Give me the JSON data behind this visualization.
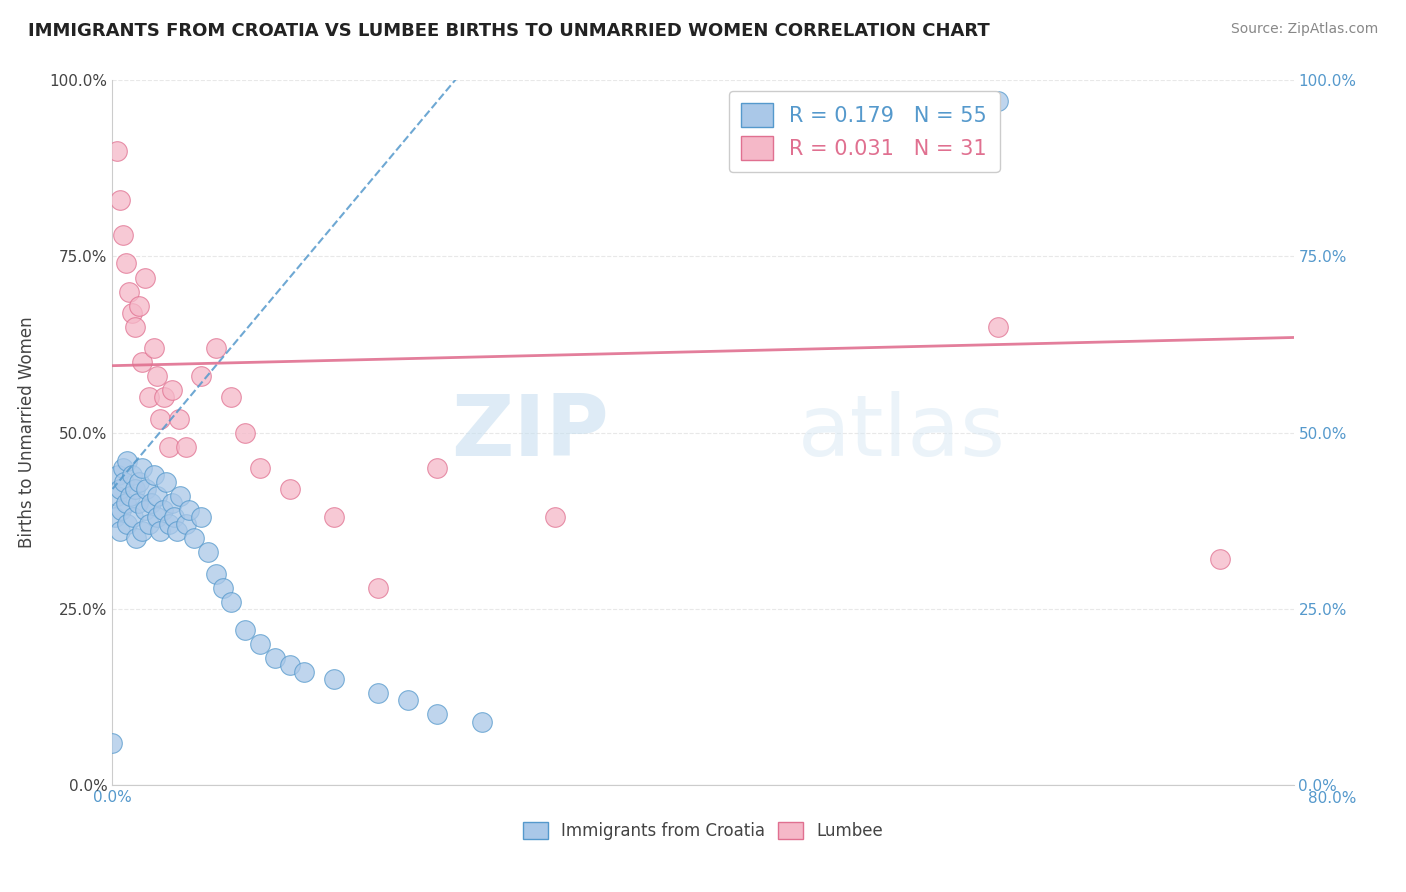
{
  "title": "IMMIGRANTS FROM CROATIA VS LUMBEE BIRTHS TO UNMARRIED WOMEN CORRELATION CHART",
  "source": "Source: ZipAtlas.com",
  "ylabel": "Births to Unmarried Women",
  "x_tick_vals": [
    0.0,
    0.01,
    0.02,
    0.03,
    0.04,
    0.05,
    0.06,
    0.07,
    0.08
  ],
  "y_tick_vals": [
    0.0,
    0.25,
    0.5,
    0.75,
    1.0
  ],
  "xlim": [
    0.0,
    0.08
  ],
  "ylim": [
    0.0,
    1.0
  ],
  "x_axis_label_right": "80.0%",
  "legend_r1": "R = 0.179",
  "legend_n1": "N = 55",
  "legend_r2": "R = 0.031",
  "legend_n2": "N = 31",
  "croatia_color": "#aac8e8",
  "croatia_edge": "#5599cc",
  "lumbee_color": "#f5b8c8",
  "lumbee_edge": "#e07090",
  "trendline_croatia_color": "#5599cc",
  "trendline_lumbee_color": "#e07090",
  "watermark_zip": "ZIP",
  "watermark_atlas": "atlas",
  "background_color": "#ffffff",
  "grid_color": "#e8e8e8",
  "croatia_scatter_x": [
    0.0002,
    0.0003,
    0.0004,
    0.0005,
    0.0005,
    0.0006,
    0.0007,
    0.0008,
    0.0009,
    0.001,
    0.001,
    0.0012,
    0.0013,
    0.0014,
    0.0015,
    0.0016,
    0.0017,
    0.0018,
    0.002,
    0.002,
    0.0022,
    0.0023,
    0.0025,
    0.0026,
    0.0028,
    0.003,
    0.003,
    0.0032,
    0.0034,
    0.0036,
    0.0038,
    0.004,
    0.0042,
    0.0044,
    0.0046,
    0.005,
    0.0052,
    0.0055,
    0.006,
    0.0065,
    0.007,
    0.0075,
    0.008,
    0.009,
    0.01,
    0.011,
    0.012,
    0.013,
    0.015,
    0.018,
    0.02,
    0.022,
    0.025,
    0.06,
    0.0
  ],
  "croatia_scatter_y": [
    0.38,
    0.41,
    0.44,
    0.36,
    0.42,
    0.39,
    0.45,
    0.43,
    0.4,
    0.37,
    0.46,
    0.41,
    0.44,
    0.38,
    0.42,
    0.35,
    0.4,
    0.43,
    0.36,
    0.45,
    0.39,
    0.42,
    0.37,
    0.4,
    0.44,
    0.38,
    0.41,
    0.36,
    0.39,
    0.43,
    0.37,
    0.4,
    0.38,
    0.36,
    0.41,
    0.37,
    0.39,
    0.35,
    0.38,
    0.33,
    0.3,
    0.28,
    0.26,
    0.22,
    0.2,
    0.18,
    0.17,
    0.16,
    0.15,
    0.13,
    0.12,
    0.1,
    0.09,
    0.97,
    0.06
  ],
  "lumbee_scatter_x": [
    0.0003,
    0.0005,
    0.0007,
    0.0009,
    0.0011,
    0.0013,
    0.0015,
    0.0018,
    0.002,
    0.0022,
    0.0025,
    0.0028,
    0.003,
    0.0032,
    0.0035,
    0.0038,
    0.004,
    0.0045,
    0.005,
    0.006,
    0.007,
    0.008,
    0.009,
    0.01,
    0.012,
    0.015,
    0.018,
    0.022,
    0.03,
    0.06,
    0.075
  ],
  "lumbee_scatter_y": [
    0.9,
    0.83,
    0.78,
    0.74,
    0.7,
    0.67,
    0.65,
    0.68,
    0.6,
    0.72,
    0.55,
    0.62,
    0.58,
    0.52,
    0.55,
    0.48,
    0.56,
    0.52,
    0.48,
    0.58,
    0.62,
    0.55,
    0.5,
    0.45,
    0.42,
    0.38,
    0.28,
    0.45,
    0.38,
    0.65,
    0.32
  ]
}
